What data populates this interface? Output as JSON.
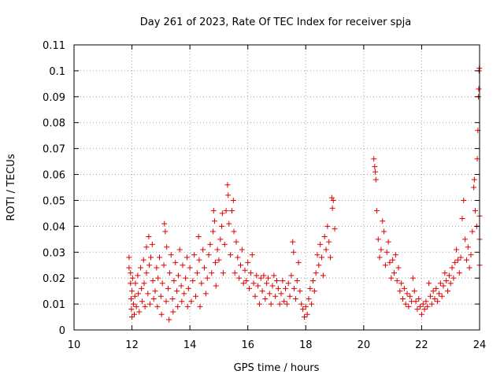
{
  "chart_data": {
    "type": "scatter",
    "title": "Day 261 of 2023, Rate Of TEC Index for receiver spja",
    "xlabel": "GPS time / hours",
    "ylabel": "ROTI / TECUs",
    "xlim": [
      10,
      24
    ],
    "ylim": [
      0,
      0.11
    ],
    "xticks": [
      10,
      12,
      14,
      16,
      18,
      20,
      22,
      24
    ],
    "xtick_labels": [
      "10",
      "12",
      "14",
      "16",
      "18",
      "20",
      "22",
      "24"
    ],
    "yticks": [
      0,
      0.01,
      0.02,
      0.03,
      0.04,
      0.05,
      0.06,
      0.07,
      0.08,
      0.09,
      0.1,
      0.11
    ],
    "ytick_labels": [
      "0",
      "0.01",
      "0.02",
      "0.03",
      "0.04",
      "0.05",
      "0.06",
      "0.07",
      "0.08",
      "0.09",
      "0.1",
      "0.11"
    ],
    "grid": true,
    "marker": "plus",
    "color": "#e00000",
    "series": [
      {
        "points": [
          [
            11.9,
            0.028
          ],
          [
            11.9,
            0.024
          ],
          [
            11.95,
            0.022
          ],
          [
            11.95,
            0.018
          ],
          [
            11.97,
            0.012
          ],
          [
            11.98,
            0.008
          ],
          [
            12.0,
            0.005
          ],
          [
            12.0,
            0.015
          ],
          [
            12.02,
            0.02
          ],
          [
            12.05,
            0.01
          ],
          [
            12.08,
            0.006
          ],
          [
            12.1,
            0.013
          ],
          [
            12.12,
            0.018
          ],
          [
            12.15,
            0.009
          ],
          [
            12.2,
            0.021
          ],
          [
            12.22,
            0.014
          ],
          [
            12.25,
            0.007
          ],
          [
            12.3,
            0.024
          ],
          [
            12.33,
            0.016
          ],
          [
            12.35,
            0.011
          ],
          [
            12.4,
            0.027
          ],
          [
            12.42,
            0.018
          ],
          [
            12.45,
            0.009
          ],
          [
            12.5,
            0.032
          ],
          [
            12.5,
            0.022
          ],
          [
            12.55,
            0.014
          ],
          [
            12.58,
            0.036
          ],
          [
            12.6,
            0.025
          ],
          [
            12.62,
            0.01
          ],
          [
            12.65,
            0.028
          ],
          [
            12.7,
            0.033
          ],
          [
            12.72,
            0.019
          ],
          [
            12.75,
            0.012
          ],
          [
            12.8,
            0.015
          ],
          [
            12.85,
            0.024
          ],
          [
            12.88,
            0.009
          ],
          [
            12.9,
            0.02
          ],
          [
            12.95,
            0.028
          ],
          [
            13.0,
            0.013
          ],
          [
            13.02,
            0.006
          ],
          [
            13.05,
            0.018
          ],
          [
            13.1,
            0.025
          ],
          [
            13.12,
            0.041
          ],
          [
            13.15,
            0.038
          ],
          [
            13.18,
            0.011
          ],
          [
            13.2,
            0.032
          ],
          [
            13.25,
            0.016
          ],
          [
            13.28,
            0.004
          ],
          [
            13.3,
            0.022
          ],
          [
            13.35,
            0.029
          ],
          [
            13.4,
            0.012
          ],
          [
            13.42,
            0.007
          ],
          [
            13.45,
            0.019
          ],
          [
            13.5,
            0.026
          ],
          [
            13.55,
            0.015
          ],
          [
            13.58,
            0.009
          ],
          [
            13.6,
            0.021
          ],
          [
            13.65,
            0.031
          ],
          [
            13.7,
            0.017
          ],
          [
            13.72,
            0.011
          ],
          [
            13.75,
            0.025
          ],
          [
            13.8,
            0.014
          ],
          [
            13.85,
            0.02
          ],
          [
            13.9,
            0.028
          ],
          [
            13.92,
            0.009
          ],
          [
            13.95,
            0.016
          ],
          [
            14.0,
            0.024
          ],
          [
            14.05,
            0.011
          ],
          [
            14.1,
            0.019
          ],
          [
            14.15,
            0.029
          ],
          [
            14.2,
            0.013
          ],
          [
            14.25,
            0.022
          ],
          [
            14.3,
            0.036
          ],
          [
            14.32,
            0.027
          ],
          [
            14.35,
            0.009
          ],
          [
            14.4,
            0.018
          ],
          [
            14.45,
            0.031
          ],
          [
            14.5,
            0.024
          ],
          [
            14.55,
            0.014
          ],
          [
            14.6,
            0.02
          ],
          [
            14.65,
            0.029
          ],
          [
            14.7,
            0.033
          ],
          [
            14.75,
            0.022
          ],
          [
            14.8,
            0.038
          ],
          [
            14.82,
            0.046
          ],
          [
            14.85,
            0.042
          ],
          [
            14.88,
            0.026
          ],
          [
            14.9,
            0.017
          ],
          [
            14.95,
            0.031
          ],
          [
            15.0,
            0.027
          ],
          [
            15.05,
            0.035
          ],
          [
            15.1,
            0.04
          ],
          [
            15.12,
            0.045
          ],
          [
            15.15,
            0.022
          ],
          [
            15.2,
            0.033
          ],
          [
            15.25,
            0.046
          ],
          [
            15.3,
            0.056
          ],
          [
            15.32,
            0.052
          ],
          [
            15.35,
            0.041
          ],
          [
            15.4,
            0.029
          ],
          [
            15.45,
            0.046
          ],
          [
            15.5,
            0.05
          ],
          [
            15.52,
            0.038
          ],
          [
            15.55,
            0.022
          ],
          [
            15.6,
            0.034
          ],
          [
            15.65,
            0.028
          ],
          [
            15.7,
            0.02
          ],
          [
            15.75,
            0.025
          ],
          [
            15.8,
            0.031
          ],
          [
            15.85,
            0.018
          ],
          [
            15.9,
            0.023
          ],
          [
            15.95,
            0.019
          ],
          [
            16.0,
            0.026
          ],
          [
            16.05,
            0.016
          ],
          [
            16.1,
            0.022
          ],
          [
            16.15,
            0.029
          ],
          [
            16.2,
            0.018
          ],
          [
            16.25,
            0.013
          ],
          [
            16.3,
            0.021
          ],
          [
            16.35,
            0.017
          ],
          [
            16.4,
            0.01
          ],
          [
            16.45,
            0.02
          ],
          [
            16.5,
            0.015
          ],
          [
            16.55,
            0.021
          ],
          [
            16.6,
            0.012
          ],
          [
            16.65,
            0.018
          ],
          [
            16.7,
            0.02
          ],
          [
            16.75,
            0.014
          ],
          [
            16.8,
            0.01
          ],
          [
            16.85,
            0.017
          ],
          [
            16.9,
            0.021
          ],
          [
            16.95,
            0.013
          ],
          [
            17.0,
            0.019
          ],
          [
            17.05,
            0.016
          ],
          [
            17.1,
            0.01
          ],
          [
            17.15,
            0.014
          ],
          [
            17.2,
            0.019
          ],
          [
            17.25,
            0.011
          ],
          [
            17.3,
            0.016
          ],
          [
            17.35,
            0.01
          ],
          [
            17.4,
            0.018
          ],
          [
            17.45,
            0.013
          ],
          [
            17.5,
            0.021
          ],
          [
            17.55,
            0.034
          ],
          [
            17.58,
            0.03
          ],
          [
            17.6,
            0.016
          ],
          [
            17.65,
            0.012
          ],
          [
            17.7,
            0.019
          ],
          [
            17.75,
            0.026
          ],
          [
            17.8,
            0.015
          ],
          [
            17.85,
            0.01
          ],
          [
            17.9,
            0.008
          ],
          [
            17.95,
            0.005
          ],
          [
            18.0,
            0.009
          ],
          [
            18.05,
            0.006
          ],
          [
            18.1,
            0.012
          ],
          [
            18.15,
            0.016
          ],
          [
            18.2,
            0.01
          ],
          [
            18.25,
            0.019
          ],
          [
            18.3,
            0.015
          ],
          [
            18.35,
            0.022
          ],
          [
            18.4,
            0.029
          ],
          [
            18.45,
            0.025
          ],
          [
            18.5,
            0.033
          ],
          [
            18.55,
            0.028
          ],
          [
            18.6,
            0.021
          ],
          [
            18.65,
            0.036
          ],
          [
            18.7,
            0.031
          ],
          [
            18.75,
            0.04
          ],
          [
            18.8,
            0.034
          ],
          [
            18.85,
            0.028
          ],
          [
            18.9,
            0.051
          ],
          [
            18.92,
            0.047
          ],
          [
            18.95,
            0.05
          ],
          [
            19.0,
            0.039
          ],
          [
            20.35,
            0.066
          ],
          [
            20.38,
            0.063
          ],
          [
            20.4,
            0.061
          ],
          [
            20.42,
            0.058
          ],
          [
            20.45,
            0.046
          ],
          [
            20.5,
            0.035
          ],
          [
            20.55,
            0.028
          ],
          [
            20.6,
            0.031
          ],
          [
            20.65,
            0.042
          ],
          [
            20.7,
            0.038
          ],
          [
            20.75,
            0.025
          ],
          [
            20.8,
            0.03
          ],
          [
            20.85,
            0.034
          ],
          [
            20.9,
            0.026
          ],
          [
            20.95,
            0.02
          ],
          [
            21.0,
            0.027
          ],
          [
            21.05,
            0.022
          ],
          [
            21.1,
            0.029
          ],
          [
            21.15,
            0.019
          ],
          [
            21.2,
            0.024
          ],
          [
            21.25,
            0.015
          ],
          [
            21.3,
            0.018
          ],
          [
            21.35,
            0.012
          ],
          [
            21.4,
            0.016
          ],
          [
            21.45,
            0.01
          ],
          [
            21.5,
            0.014
          ],
          [
            21.55,
            0.009
          ],
          [
            21.6,
            0.013
          ],
          [
            21.65,
            0.011
          ],
          [
            21.7,
            0.02
          ],
          [
            21.75,
            0.015
          ],
          [
            21.8,
            0.011
          ],
          [
            21.85,
            0.008
          ],
          [
            21.9,
            0.012
          ],
          [
            21.95,
            0.009
          ],
          [
            22.0,
            0.006
          ],
          [
            22.05,
            0.01
          ],
          [
            22.1,
            0.008
          ],
          [
            22.15,
            0.011
          ],
          [
            22.2,
            0.009
          ],
          [
            22.25,
            0.018
          ],
          [
            22.3,
            0.013
          ],
          [
            22.35,
            0.01
          ],
          [
            22.4,
            0.015
          ],
          [
            22.45,
            0.012
          ],
          [
            22.5,
            0.016
          ],
          [
            22.55,
            0.011
          ],
          [
            22.6,
            0.014
          ],
          [
            22.65,
            0.018
          ],
          [
            22.7,
            0.013
          ],
          [
            22.75,
            0.017
          ],
          [
            22.8,
            0.022
          ],
          [
            22.85,
            0.019
          ],
          [
            22.9,
            0.015
          ],
          [
            22.95,
            0.021
          ],
          [
            23.0,
            0.018
          ],
          [
            23.05,
            0.024
          ],
          [
            23.1,
            0.02
          ],
          [
            23.15,
            0.026
          ],
          [
            23.2,
            0.031
          ],
          [
            23.25,
            0.027
          ],
          [
            23.3,
            0.022
          ],
          [
            23.35,
            0.028
          ],
          [
            23.4,
            0.043
          ],
          [
            23.45,
            0.05
          ],
          [
            23.5,
            0.035
          ],
          [
            23.55,
            0.027
          ],
          [
            23.6,
            0.032
          ],
          [
            23.65,
            0.024
          ],
          [
            23.7,
            0.029
          ],
          [
            23.75,
            0.038
          ],
          [
            23.8,
            0.055
          ],
          [
            23.82,
            0.058
          ],
          [
            23.85,
            0.046
          ],
          [
            23.9,
            0.04
          ],
          [
            23.92,
            0.066
          ],
          [
            23.94,
            0.077
          ],
          [
            23.96,
            0.09
          ],
          [
            23.97,
            0.093
          ],
          [
            23.98,
            0.1
          ],
          [
            23.99,
            0.101
          ],
          [
            24.0,
            0.044
          ],
          [
            24.0,
            0.035
          ],
          [
            24.0,
            0.025
          ]
        ]
      }
    ]
  }
}
